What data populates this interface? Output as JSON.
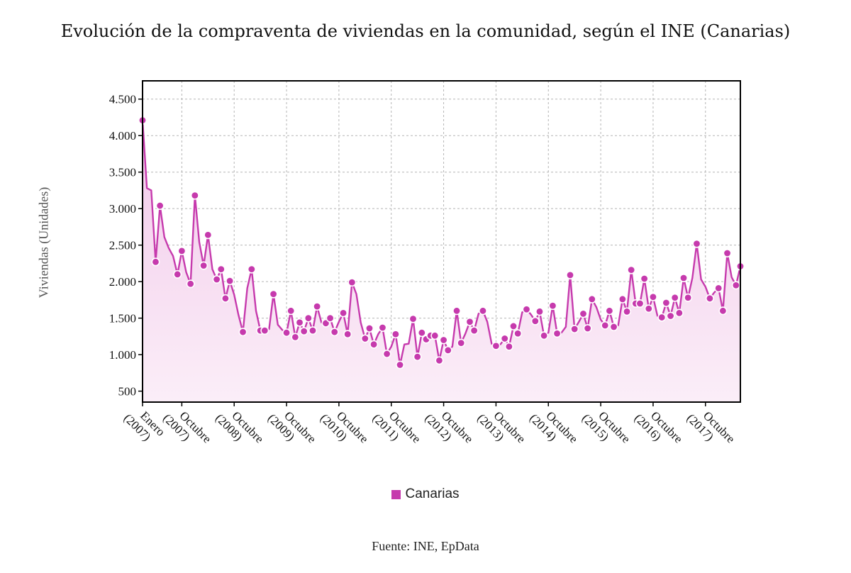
{
  "chart_data": {
    "type": "area",
    "title": "Evolución de la compraventa de viviendas en la comunidad, según el INE (Canarias)",
    "ylabel": "Viviendas (Unidades)",
    "source": "Fuente: INE, EpData",
    "ylim": [
      350,
      4750
    ],
    "yticks": [
      500,
      1000,
      1500,
      2000,
      2500,
      3000,
      3500,
      4000,
      4500
    ],
    "ytick_labels": [
      "500",
      "1.000",
      "1.500",
      "2.000",
      "2.500",
      "3.000",
      "3.500",
      "4.000",
      "4.500"
    ],
    "xtick_labels": [
      {
        "index": 0,
        "label": [
          "Enero",
          "(2007)"
        ]
      },
      {
        "index": 9,
        "label": [
          "Octubre",
          "(2007)"
        ]
      },
      {
        "index": 21,
        "label": [
          "Octubre",
          "(2008)"
        ]
      },
      {
        "index": 33,
        "label": [
          "Octubre",
          "(2009)"
        ]
      },
      {
        "index": 45,
        "label": [
          "Octubre",
          "(2010)"
        ]
      },
      {
        "index": 57,
        "label": [
          "Octubre",
          "(2011)"
        ]
      },
      {
        "index": 69,
        "label": [
          "Octubre",
          "(2012)"
        ]
      },
      {
        "index": 81,
        "label": [
          "Octubre",
          "(2013)"
        ]
      },
      {
        "index": 93,
        "label": [
          "Octubre",
          "(2014)"
        ]
      },
      {
        "index": 105,
        "label": [
          "Octubre",
          "(2015)"
        ]
      },
      {
        "index": 117,
        "label": [
          "Octubre",
          "(2016)"
        ]
      },
      {
        "index": 129,
        "label": [
          "Octubre",
          "(2017)"
        ]
      }
    ],
    "grid": true,
    "legend_position": "bottom",
    "colors": {
      "line": "#c63aad",
      "marker": "#c63aad",
      "fill_top": "#f2c9ea",
      "fill_bottom": "#fbeef8",
      "legend": "#c63aad"
    },
    "series": [
      {
        "name": "Canarias",
        "start": "2007-01",
        "end": "2018-12",
        "values": [
          4210,
          3280,
          3250,
          2270,
          3040,
          2610,
          2460,
          2350,
          2100,
          2420,
          2130,
          1970,
          3180,
          2540,
          2220,
          2640,
          2170,
          2030,
          2170,
          1770,
          2010,
          1820,
          1540,
          1310,
          1910,
          2170,
          1600,
          1330,
          1330,
          1350,
          1830,
          1410,
          1340,
          1300,
          1600,
          1240,
          1440,
          1320,
          1500,
          1330,
          1660,
          1440,
          1430,
          1500,
          1310,
          1450,
          1570,
          1280,
          1990,
          1830,
          1440,
          1220,
          1360,
          1140,
          1280,
          1370,
          1010,
          1110,
          1280,
          860,
          1140,
          1150,
          1490,
          970,
          1300,
          1210,
          1260,
          1260,
          920,
          1200,
          1060,
          1110,
          1600,
          1160,
          1290,
          1450,
          1330,
          1560,
          1600,
          1450,
          1150,
          1120,
          1140,
          1220,
          1110,
          1390,
          1290,
          1580,
          1620,
          1550,
          1460,
          1590,
          1260,
          1300,
          1670,
          1290,
          1300,
          1380,
          2090,
          1350,
          1450,
          1560,
          1360,
          1760,
          1650,
          1480,
          1400,
          1600,
          1380,
          1400,
          1760,
          1590,
          2160,
          1700,
          1700,
          2040,
          1630,
          1790,
          1530,
          1510,
          1710,
          1530,
          1780,
          1570,
          2050,
          1780,
          2050,
          2520,
          2030,
          1930,
          1770,
          1850,
          1910,
          1600,
          2390,
          2060,
          1950,
          2210
        ]
      }
    ]
  },
  "labels": {
    "title": "Evolución de la compraventa de viviendas en la comunidad, según el INE (Canarias)",
    "ylabel": "Viviendas (Unidades)",
    "legend_label": "Canarias",
    "source": "Fuente: INE, EpData"
  }
}
